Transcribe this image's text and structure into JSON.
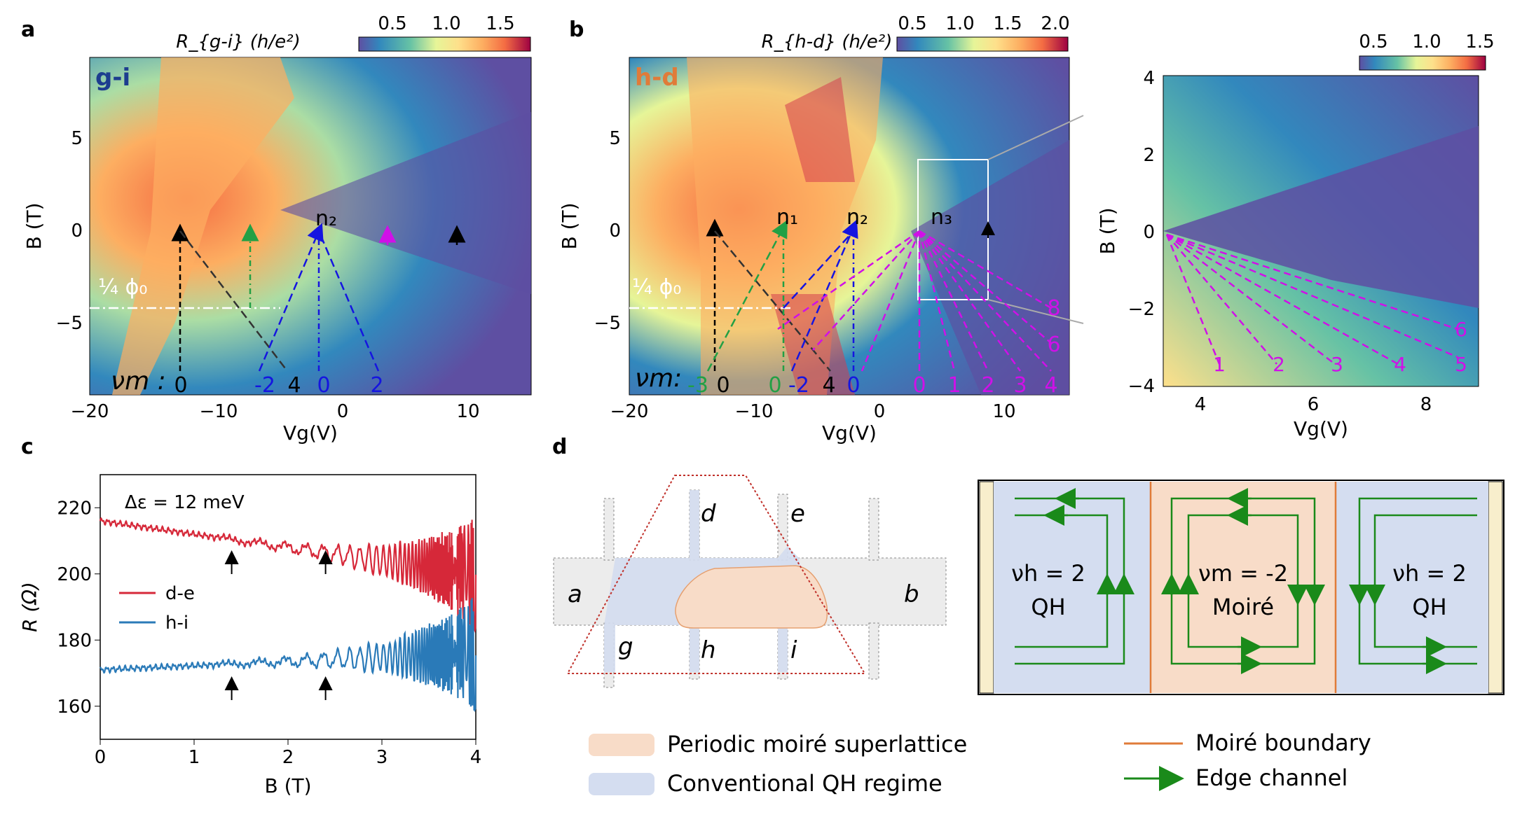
{
  "panel_labels": {
    "a": "a",
    "b": "b",
    "c": "c",
    "d": "d"
  },
  "colormap": [
    "#5e4fa2",
    "#3288bd",
    "#66c2a5",
    "#abdda4",
    "#e6f598",
    "#fee08b",
    "#fdae61",
    "#f46d43",
    "#d53e4f",
    "#9e0142"
  ],
  "panel_a": {
    "tag": "g-i",
    "colorbar_label": "R_{g-i} (h/e²)",
    "colorbar_ticks": [
      "0.5",
      "1.0",
      "1.5"
    ],
    "ylabel": "B (T)",
    "xlabel": "Vg(V)",
    "x_ticks": [
      "−20",
      "−10",
      "0",
      "10"
    ],
    "y_ticks": [
      "5",
      "0",
      "−5"
    ],
    "flux_label": "¼ ϕ₀",
    "n_labels": [
      "n₂"
    ],
    "nu_label": "νm :",
    "nu_values": [
      "0",
      "-2",
      "4",
      "0",
      "2"
    ]
  },
  "panel_b": {
    "tag": "h-d",
    "colorbar_label": "R_{h-d} (h/e²)",
    "colorbar_ticks": [
      "0.5",
      "1.0",
      "1.5",
      "2.0"
    ],
    "ylabel": "B (T)",
    "xlabel": "Vg(V)",
    "x_ticks": [
      "−20",
      "−10",
      "0",
      "10"
    ],
    "y_ticks": [
      "5",
      "0",
      "−5"
    ],
    "flux_label": "¼ ϕ₀",
    "n_labels": [
      "n₁",
      "n₂",
      "n₃"
    ],
    "nu_label": "νm:",
    "nu_values": [
      "-3",
      "0",
      "0",
      "-2",
      "4",
      "0",
      "0",
      "1",
      "2",
      "3",
      "4"
    ],
    "side_values": [
      "8",
      "6"
    ]
  },
  "panel_inset": {
    "colorbar_ticks": [
      "0.5",
      "1.0",
      "1.5"
    ],
    "ylabel": "B (T)",
    "xlabel": "Vg(V)",
    "x_ticks": [
      "4",
      "6",
      "8"
    ],
    "y_ticks": [
      "4",
      "2",
      "0",
      "−2",
      "−4"
    ],
    "fan_labels": [
      "1",
      "2",
      "3",
      "4",
      "5",
      "6"
    ]
  },
  "chart_data": {
    "type": "line",
    "title": "",
    "annotation": "Δε = 12 meV",
    "xlabel": "B (T)",
    "ylabel": "R (Ω)",
    "xlim": [
      0,
      4
    ],
    "ylim": [
      150,
      230
    ],
    "x_ticks": [
      "0",
      "1",
      "2",
      "3",
      "4"
    ],
    "y_ticks": [
      "160",
      "180",
      "200",
      "220"
    ],
    "series": [
      {
        "name": "d-e",
        "color": "#d62839",
        "base_start": 216,
        "base_end": 200,
        "osc_start_B": 1.2
      },
      {
        "name": "h-i",
        "color": "#2a7ab8",
        "base_start": 171,
        "base_end": 176,
        "osc_start_B": 1.2
      }
    ],
    "arrows_B": [
      1.4,
      2.4
    ]
  },
  "panel_d": {
    "contacts": [
      "a",
      "b",
      "d",
      "e",
      "g",
      "h",
      "i"
    ],
    "regions": [
      {
        "nu": "νh = 2",
        "type": "QH"
      },
      {
        "nu": "νm = -2",
        "type": "Moiré"
      },
      {
        "nu": "νh = 2",
        "type": "QH"
      }
    ],
    "legend": [
      "Periodic moiré superlattice",
      "Conventional QH regime",
      "Moiré boundary",
      "Edge channel"
    ],
    "colors": {
      "moire": "#f8dcc8",
      "qh": "#d4ddf0",
      "boundary": "#e07b39",
      "edge": "#1a8a1a"
    }
  }
}
